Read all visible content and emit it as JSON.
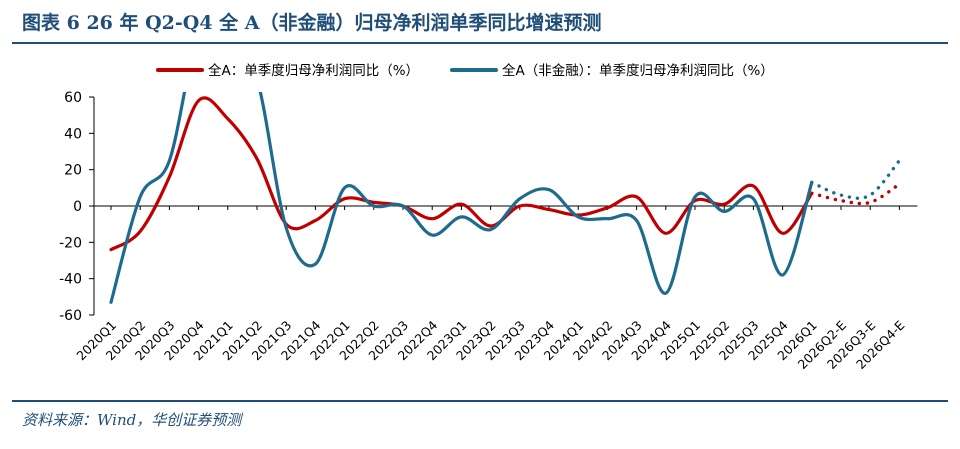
{
  "figure": {
    "title": "图表 6   26 年 Q2-Q4 全  A（非金融）归母净利润单季同比增速预测",
    "source": "资料来源：Wind，华创证券预测"
  },
  "colors": {
    "red": "#c00000",
    "teal": "#1f6b8e",
    "rule": "#1f4e79"
  },
  "chart_data": {
    "type": "line",
    "title": "",
    "xlabel": "",
    "ylabel": "",
    "ylim": [
      -60,
      60
    ],
    "yticks": [
      60,
      40,
      20,
      0,
      -20,
      -40,
      -60
    ],
    "legend": "top",
    "grid": false,
    "categories": [
      "2020Q1",
      "2020Q2",
      "2020Q3",
      "2020Q4",
      "2021Q1",
      "2021Q2",
      "2021Q3",
      "2021Q4",
      "2022Q1",
      "2022Q2",
      "2022Q3",
      "2022Q4",
      "2023Q1",
      "2023Q2",
      "2023Q3",
      "2023Q4",
      "2024Q1",
      "2024Q2",
      "2024Q3",
      "2024Q4",
      "2025Q1",
      "2025Q2",
      "2025Q3",
      "2025Q4",
      "2026Q1",
      "2026Q2-E",
      "2026Q3-E",
      "2026Q4-E"
    ],
    "forecast_from_index": 24,
    "series": [
      {
        "name": "全A：单季度归母净利润同比（%）",
        "color": "#c00000",
        "values": [
          -24,
          -14,
          16,
          58,
          48,
          26,
          -10,
          -8,
          4,
          2,
          0,
          -7,
          1,
          -11,
          0,
          -2,
          -5,
          -1,
          5,
          -15,
          3,
          1,
          11,
          -15,
          7,
          3,
          2,
          12
        ]
      },
      {
        "name": "全A（非金融）：单季度归母净利润同比（%）",
        "color": "#1f6b8e",
        "values": [
          -53,
          5,
          25,
          95,
          95,
          70,
          -12,
          -32,
          10,
          0,
          0,
          -16,
          -6,
          -13,
          4,
          9,
          -6,
          -7,
          -8,
          -48,
          5,
          -3,
          4,
          -38,
          13,
          6,
          6,
          25
        ]
      }
    ]
  }
}
